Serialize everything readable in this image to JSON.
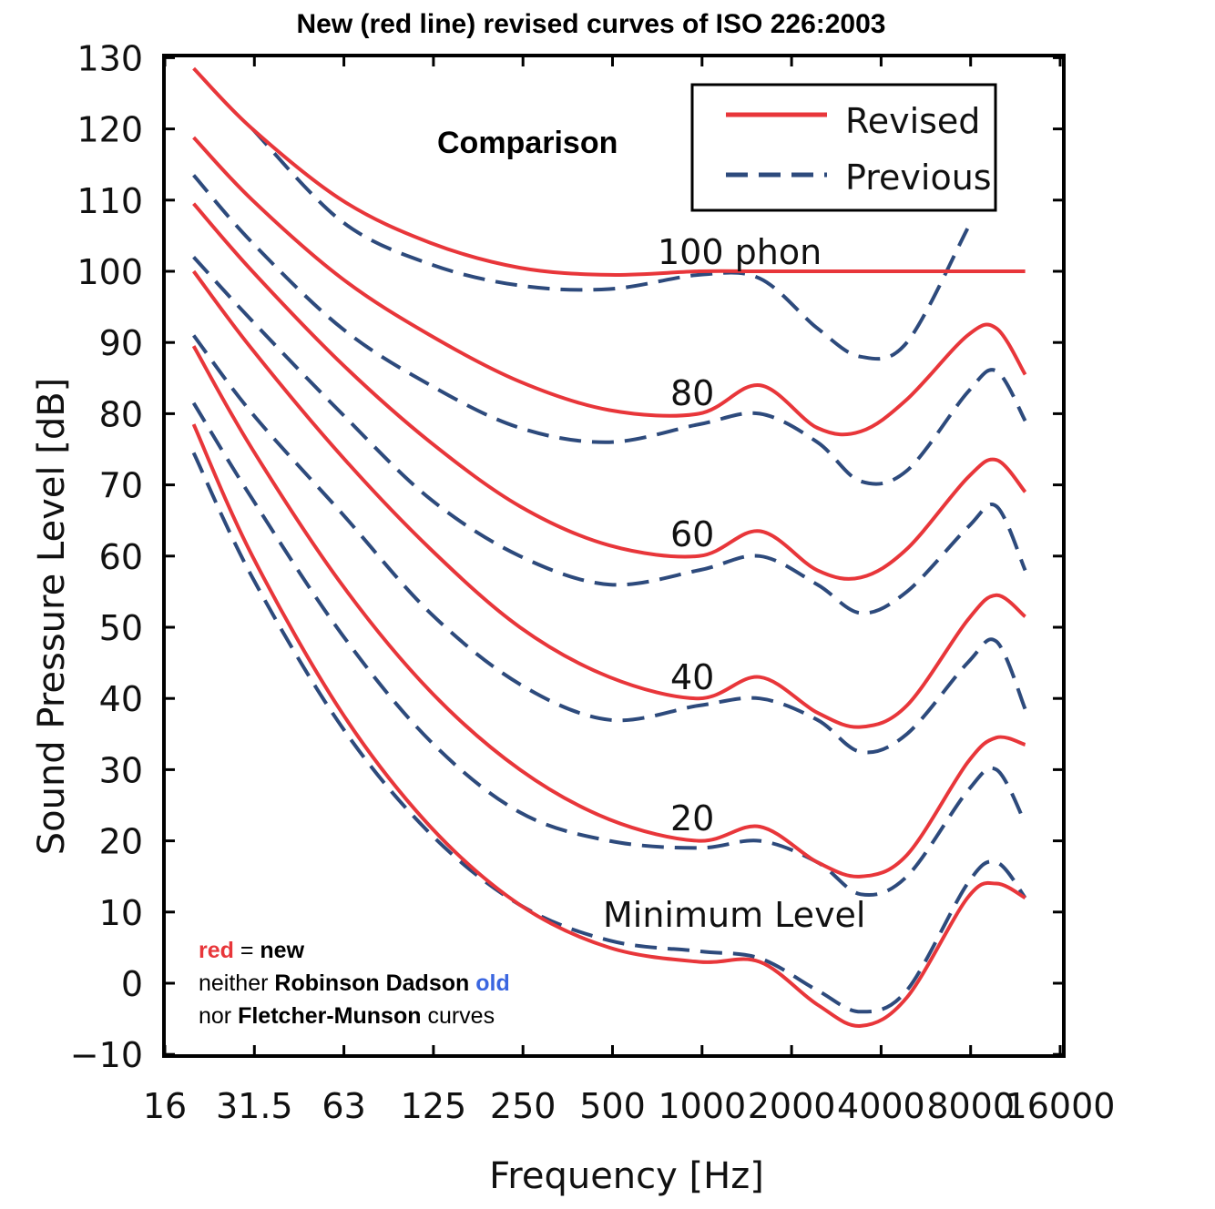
{
  "chart_data": {
    "type": "line",
    "title": "New (red line) revised curves of ISO 226:2003",
    "xlabel": "Frequency [Hz]",
    "ylabel": "Sound Pressure Level [dB]",
    "x_scale": "log2",
    "xlim": [
      16,
      16000
    ],
    "ylim": [
      -10,
      130
    ],
    "x_ticks": [
      "16",
      "31.5",
      "63",
      "125",
      "250",
      "500",
      "1000",
      "2000",
      "4000",
      "8000",
      "16000"
    ],
    "y_ticks": [
      "130",
      "120",
      "110",
      "100",
      "90",
      "80",
      "70",
      "60",
      "50",
      "40",
      "30",
      "20",
      "10",
      "0",
      "−10"
    ],
    "grid": false,
    "legend": {
      "position": "top-right",
      "entries": [
        {
          "label": "Revised",
          "color": "#e8363a",
          "style": "solid"
        },
        {
          "label": "Previous",
          "color": "#2d4a7c",
          "style": "dashed"
        }
      ]
    },
    "annotations": {
      "comparison": "Comparison",
      "phon100": "100 phon",
      "phon80": "80",
      "phon60": "60",
      "phon40": "40",
      "phon20": "20",
      "minimum": "Minimum Level"
    },
    "note": {
      "line1_red": "red",
      "line1_rest": " = new",
      "line1_bold": "new",
      "line2_a": "neither ",
      "line2_bold": "Robinson Dadson",
      "line2_blue": " old",
      "line3_a": "nor ",
      "line3_bold": "Fletcher-Munson",
      "line3_b": " curves"
    },
    "colors": {
      "revised": "#e8363a",
      "previous": "#2d4a7c",
      "old_word": "#3a66e0"
    },
    "series": [
      {
        "name": "Revised",
        "level": "100 phon",
        "x": [
          20,
          31.5,
          63,
          125,
          250,
          500,
          1000,
          1600,
          2500,
          3500,
          5000,
          8000,
          10000,
          12500
        ],
        "y": [
          128.5,
          120,
          110,
          104,
          100.5,
          99.5,
          100,
          100,
          100,
          100,
          100,
          100,
          100,
          100
        ]
      },
      {
        "name": "Revised",
        "level": "80",
        "x": [
          20,
          31.5,
          63,
          125,
          250,
          500,
          1000,
          1600,
          2500,
          3500,
          5000,
          8000,
          10000,
          12500
        ],
        "y": [
          118.8,
          110,
          99,
          91,
          84.5,
          80.5,
          80,
          84,
          78,
          77.5,
          82,
          91,
          92,
          85.5
        ]
      },
      {
        "name": "Revised",
        "level": "60",
        "x": [
          20,
          31.5,
          63,
          125,
          250,
          500,
          1000,
          1600,
          2500,
          3500,
          5000,
          8000,
          10000,
          12500
        ],
        "y": [
          109.5,
          100,
          87,
          76,
          67,
          61.5,
          60,
          63.5,
          58,
          57,
          61,
          71,
          73.5,
          69
        ]
      },
      {
        "name": "Revised",
        "level": "40",
        "x": [
          20,
          31.5,
          63,
          125,
          250,
          500,
          1000,
          1600,
          2500,
          3500,
          5000,
          8000,
          10000,
          12500
        ],
        "y": [
          100,
          89,
          74,
          61,
          50,
          43,
          40,
          43,
          38,
          36,
          39,
          51,
          54.5,
          51.5
        ]
      },
      {
        "name": "Revised",
        "level": "20",
        "x": [
          20,
          31.5,
          63,
          125,
          250,
          500,
          1000,
          1600,
          2500,
          3500,
          5000,
          8000,
          10000,
          12500
        ],
        "y": [
          89.5,
          75,
          56,
          41,
          30,
          23,
          20,
          22,
          17,
          15,
          18,
          31,
          34.5,
          33.5
        ]
      },
      {
        "name": "Revised",
        "level": "Minimum Level",
        "x": [
          20,
          31.5,
          63,
          125,
          250,
          500,
          1000,
          1600,
          2500,
          3500,
          5000,
          8000,
          10000,
          12500
        ],
        "y": [
          78.5,
          60,
          38,
          22,
          11,
          5,
          3,
          3,
          -3,
          -6,
          -2,
          12,
          14,
          12
        ]
      },
      {
        "name": "Previous",
        "level": "100 phon",
        "x": [
          31.5,
          63,
          125,
          250,
          500,
          1000,
          1600,
          2500,
          3500,
          5000,
          8000
        ],
        "y": [
          120,
          107,
          101,
          98,
          97.5,
          99.5,
          99,
          92,
          88,
          90,
          106
        ]
      },
      {
        "name": "Previous",
        "level": "80",
        "x": [
          20,
          31.5,
          63,
          125,
          250,
          500,
          1000,
          1600,
          2500,
          3500,
          5000,
          8000,
          10000,
          12500
        ],
        "y": [
          113.5,
          104,
          92,
          84,
          78,
          76,
          78.5,
          80,
          76,
          70.5,
          72,
          83,
          86,
          79
        ]
      },
      {
        "name": "Previous",
        "level": "60",
        "x": [
          20,
          31.5,
          63,
          125,
          250,
          500,
          1000,
          1600,
          2500,
          3500,
          5000,
          8000,
          10000,
          12500
        ],
        "y": [
          102,
          93,
          80,
          68,
          60,
          56,
          58,
          60,
          56,
          52,
          55,
          64,
          67,
          58
        ]
      },
      {
        "name": "Previous",
        "level": "40",
        "x": [
          20,
          31.5,
          63,
          125,
          250,
          500,
          1000,
          1600,
          2500,
          3500,
          5000,
          8000,
          10000,
          12500
        ],
        "y": [
          91,
          80,
          66,
          52,
          42,
          37,
          39,
          40,
          37,
          32.5,
          35,
          45,
          48,
          38.5
        ]
      },
      {
        "name": "Previous",
        "level": "20",
        "x": [
          20,
          31.5,
          63,
          125,
          250,
          500,
          1000,
          1600,
          2500,
          3500,
          5000,
          8000,
          10000,
          12500
        ],
        "y": [
          81.5,
          68,
          49,
          34,
          24,
          20,
          19,
          20,
          17,
          12.5,
          15,
          27,
          30,
          22.5
        ]
      },
      {
        "name": "Previous",
        "level": "Minimum Level",
        "x": [
          20,
          31.5,
          63,
          125,
          250,
          500,
          1000,
          1600,
          2500,
          3500,
          5000,
          8000,
          10000,
          12500
        ],
        "y": [
          74.5,
          57,
          36,
          21,
          11,
          6,
          4.5,
          3.5,
          -1,
          -4,
          -1,
          14,
          17,
          12
        ]
      }
    ]
  }
}
